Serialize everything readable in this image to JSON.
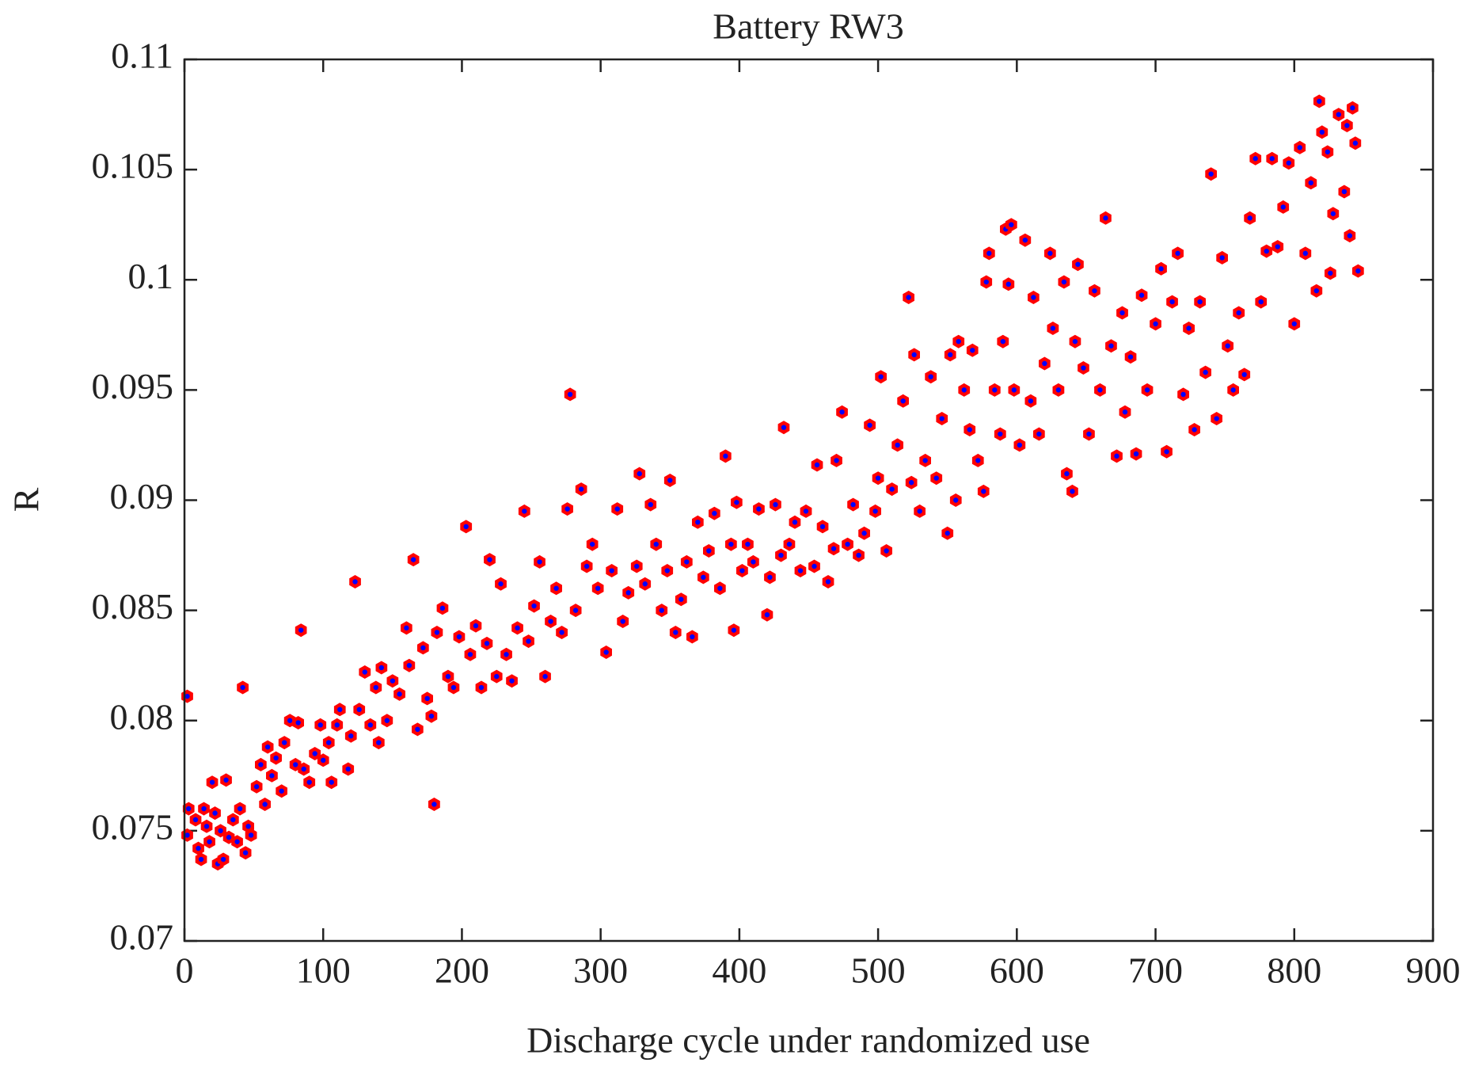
{
  "chart_data": {
    "type": "scatter",
    "title": "Battery RW3",
    "x_label": "Discharge cycle under randomized use",
    "y_label": "R",
    "color": "#0000ff",
    "edge_color": "#ff0000",
    "xlim": [
      0,
      900
    ],
    "xticks": [
      0,
      100,
      200,
      300,
      400,
      500,
      600,
      700,
      800,
      900
    ],
    "ylim": [
      0.07,
      0.11
    ],
    "yticks": [
      0.07,
      0.075,
      0.08,
      0.085,
      0.09,
      0.095,
      0.1,
      0.105,
      0.11
    ],
    "grid": false,
    "x": [
      2,
      2,
      3,
      8,
      10,
      12,
      14,
      16,
      18,
      20,
      22,
      24,
      26,
      28,
      30,
      32,
      35,
      38,
      40,
      42,
      44,
      46,
      48,
      52,
      55,
      58,
      60,
      63,
      66,
      70,
      72,
      76,
      80,
      82,
      84,
      86,
      90,
      94,
      98,
      100,
      104,
      106,
      110,
      112,
      118,
      120,
      123,
      126,
      130,
      134,
      138,
      140,
      142,
      146,
      150,
      155,
      160,
      162,
      165,
      168,
      172,
      175,
      178,
      180,
      182,
      186,
      190,
      194,
      198,
      203,
      206,
      210,
      214,
      218,
      220,
      225,
      228,
      232,
      236,
      240,
      245,
      248,
      252,
      256,
      260,
      264,
      268,
      272,
      276,
      278,
      282,
      286,
      290,
      294,
      298,
      304,
      308,
      312,
      316,
      320,
      326,
      328,
      332,
      336,
      340,
      344,
      348,
      350,
      354,
      358,
      362,
      366,
      370,
      374,
      378,
      382,
      386,
      390,
      394,
      396,
      398,
      402,
      406,
      410,
      414,
      420,
      422,
      426,
      430,
      432,
      436,
      440,
      444,
      448,
      454,
      456,
      460,
      464,
      468,
      470,
      474,
      478,
      482,
      486,
      490,
      494,
      498,
      500,
      502,
      506,
      510,
      514,
      518,
      522,
      524,
      526,
      530,
      534,
      538,
      542,
      546,
      550,
      552,
      556,
      558,
      562,
      566,
      568,
      572,
      576,
      578,
      580,
      584,
      588,
      590,
      592,
      594,
      596,
      598,
      602,
      606,
      610,
      612,
      616,
      620,
      624,
      626,
      630,
      634,
      636,
      640,
      642,
      644,
      648,
      652,
      656,
      660,
      664,
      668,
      672,
      676,
      678,
      682,
      686,
      690,
      694,
      700,
      704,
      708,
      712,
      716,
      720,
      724,
      728,
      732,
      736,
      740,
      744,
      748,
      752,
      756,
      760,
      764,
      768,
      772,
      776,
      780,
      784,
      788,
      792,
      796,
      800,
      804,
      808,
      812,
      816,
      818,
      820,
      824,
      826,
      828,
      832,
      836,
      838,
      840,
      842,
      844,
      846
    ],
    "values": [
      0.0811,
      0.0748,
      0.076,
      0.0755,
      0.0742,
      0.0737,
      0.076,
      0.0752,
      0.0745,
      0.0772,
      0.0758,
      0.0735,
      0.075,
      0.0737,
      0.0773,
      0.0747,
      0.0755,
      0.0745,
      0.076,
      0.0815,
      0.074,
      0.0752,
      0.0748,
      0.077,
      0.078,
      0.0762,
      0.0788,
      0.0775,
      0.0783,
      0.0768,
      0.079,
      0.08,
      0.078,
      0.0799,
      0.0841,
      0.0778,
      0.0772,
      0.0785,
      0.0798,
      0.0782,
      0.079,
      0.0772,
      0.0798,
      0.0805,
      0.0778,
      0.0793,
      0.0863,
      0.0805,
      0.0822,
      0.0798,
      0.0815,
      0.079,
      0.0824,
      0.08,
      0.0818,
      0.0812,
      0.0842,
      0.0825,
      0.0873,
      0.0796,
      0.0833,
      0.081,
      0.0802,
      0.0762,
      0.084,
      0.0851,
      0.082,
      0.0815,
      0.0838,
      0.0888,
      0.083,
      0.0843,
      0.0815,
      0.0835,
      0.0873,
      0.082,
      0.0862,
      0.083,
      0.0818,
      0.0842,
      0.0895,
      0.0836,
      0.0852,
      0.0872,
      0.082,
      0.0845,
      0.086,
      0.084,
      0.0896,
      0.0948,
      0.085,
      0.0905,
      0.087,
      0.088,
      0.086,
      0.0831,
      0.0868,
      0.0896,
      0.0845,
      0.0858,
      0.087,
      0.0912,
      0.0862,
      0.0898,
      0.088,
      0.085,
      0.0868,
      0.0909,
      0.084,
      0.0855,
      0.0872,
      0.0838,
      0.089,
      0.0865,
      0.0877,
      0.0894,
      0.086,
      0.092,
      0.088,
      0.0841,
      0.0899,
      0.0868,
      0.088,
      0.0872,
      0.0896,
      0.0848,
      0.0865,
      0.0898,
      0.0875,
      0.0933,
      0.088,
      0.089,
      0.0868,
      0.0895,
      0.087,
      0.0916,
      0.0888,
      0.0863,
      0.0878,
      0.0918,
      0.094,
      0.088,
      0.0898,
      0.0875,
      0.0885,
      0.0934,
      0.0895,
      0.091,
      0.0956,
      0.0877,
      0.0905,
      0.0925,
      0.0945,
      0.0992,
      0.0908,
      0.0966,
      0.0895,
      0.0918,
      0.0956,
      0.091,
      0.0937,
      0.0885,
      0.0966,
      0.09,
      0.0972,
      0.095,
      0.0932,
      0.0968,
      0.0918,
      0.0904,
      0.0999,
      0.1012,
      0.095,
      0.093,
      0.0972,
      0.1023,
      0.0998,
      0.1025,
      0.095,
      0.0925,
      0.1018,
      0.0945,
      0.0992,
      0.093,
      0.0962,
      0.1012,
      0.0978,
      0.095,
      0.0999,
      0.0912,
      0.0904,
      0.0972,
      0.1007,
      0.096,
      0.093,
      0.0995,
      0.095,
      0.1028,
      0.097,
      0.092,
      0.0985,
      0.094,
      0.0965,
      0.0921,
      0.0993,
      0.095,
      0.098,
      0.1005,
      0.0922,
      0.099,
      0.1012,
      0.0948,
      0.0978,
      0.0932,
      0.099,
      0.0958,
      0.1048,
      0.0937,
      0.101,
      0.097,
      0.095,
      0.0985,
      0.0957,
      0.1028,
      0.1055,
      0.099,
      0.1013,
      0.1055,
      0.1015,
      0.1033,
      0.1053,
      0.098,
      0.106,
      0.1012,
      0.1044,
      0.0995,
      0.1081,
      0.1067,
      0.1058,
      0.1003,
      0.103,
      0.1075,
      0.104,
      0.107,
      0.102,
      0.1078,
      0.1062,
      0.1004
    ]
  }
}
